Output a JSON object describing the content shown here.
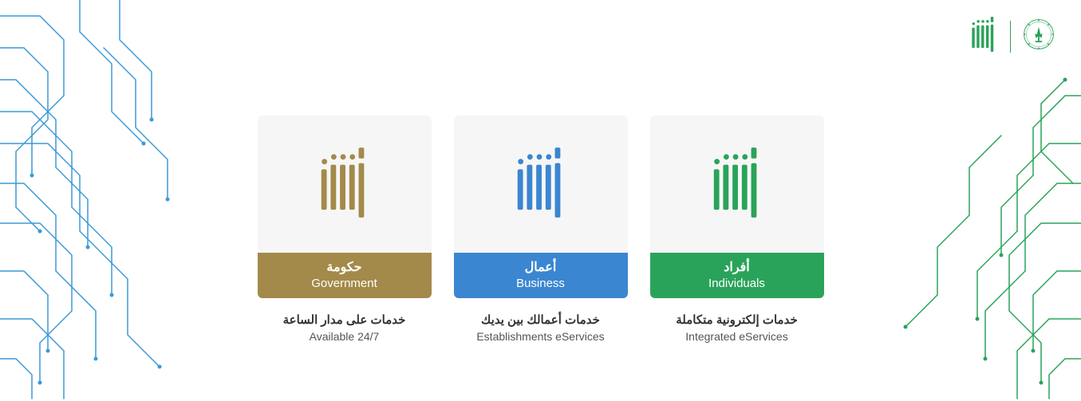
{
  "header": {
    "absher_logo_color": "#2aa35a"
  },
  "circuits": {
    "left_color": "#3b9ad6",
    "right_color": "#2aa35a",
    "stroke_width": 1.5,
    "node_radius": 2.5
  },
  "cards": [
    {
      "id": "government",
      "logo_color": "#a38a4a",
      "banner_color": "#a38a4a",
      "title_ar": "حكومة",
      "title_en": "Government",
      "subtitle_ar": "خدمات على مدار الساعة",
      "subtitle_en": "Available 24/7"
    },
    {
      "id": "business",
      "logo_color": "#3b86d1",
      "banner_color": "#3b86d1",
      "title_ar": "أعمال",
      "title_en": "Business",
      "subtitle_ar": "خدمات أعمالك بين يديك",
      "subtitle_en": "Establishments eServices"
    },
    {
      "id": "individuals",
      "logo_color": "#2aa35a",
      "banner_color": "#2aa35a",
      "title_ar": "أفراد",
      "title_en": "Individuals",
      "subtitle_ar": "خدمات إلكترونية متكاملة",
      "subtitle_en": "Integrated eServices"
    }
  ]
}
